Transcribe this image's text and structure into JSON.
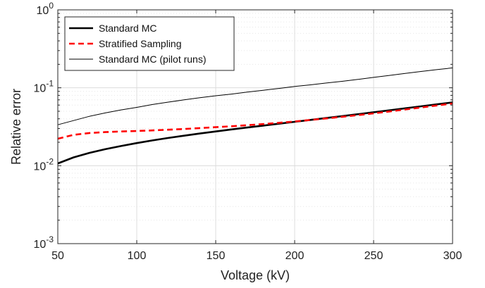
{
  "chart_data": {
    "type": "line",
    "title": "",
    "xlabel": "Voltage (kV)",
    "ylabel": "Relative error",
    "x_scale": "linear",
    "y_scale": "log",
    "xlim": [
      50,
      300
    ],
    "ylim": [
      0.001,
      1
    ],
    "x_ticks": [
      50,
      100,
      150,
      200,
      250,
      300
    ],
    "x_tick_labels": [
      "50",
      "100",
      "150",
      "200",
      "250",
      "300"
    ],
    "y_ticks": [
      0.001,
      0.01,
      0.1,
      1
    ],
    "y_tick_labels": [
      {
        "base": "10",
        "exp": "-3"
      },
      {
        "base": "10",
        "exp": "-2"
      },
      {
        "base": "10",
        "exp": "-1"
      },
      {
        "base": "10",
        "exp": "0"
      }
    ],
    "grid": true,
    "minor_grid": true,
    "legend_position": "top-left",
    "x": [
      50,
      60,
      70,
      80,
      90,
      100,
      110,
      120,
      130,
      140,
      150,
      160,
      170,
      180,
      190,
      200,
      210,
      220,
      230,
      240,
      250,
      260,
      270,
      280,
      290,
      300
    ],
    "series": [
      {
        "name": "Standard MC",
        "color": "#000000",
        "style": "solid",
        "width": "thick",
        "values": [
          0.0107,
          0.0128,
          0.0146,
          0.0163,
          0.0179,
          0.0195,
          0.0211,
          0.0227,
          0.0243,
          0.0259,
          0.0275,
          0.0292,
          0.0309,
          0.0327,
          0.0346,
          0.0366,
          0.0387,
          0.0409,
          0.0433,
          0.0458,
          0.0485,
          0.0514,
          0.0545,
          0.0578,
          0.0613,
          0.065
        ]
      },
      {
        "name": "Stratified Sampling",
        "color": "#ff0000",
        "style": "dashed",
        "width": "thick",
        "values": [
          0.0222,
          0.0249,
          0.0263,
          0.027,
          0.0275,
          0.0279,
          0.0284,
          0.029,
          0.0296,
          0.0304,
          0.0312,
          0.0321,
          0.0331,
          0.0342,
          0.0355,
          0.037,
          0.0386,
          0.0404,
          0.0424,
          0.0446,
          0.047,
          0.0497,
          0.0526,
          0.0558,
          0.0593,
          0.063
        ]
      },
      {
        "name": "Standard MC (pilot runs)",
        "color": "#000000",
        "style": "solid",
        "width": "thin",
        "values": [
          0.0335,
          0.038,
          0.043,
          0.0475,
          0.052,
          0.056,
          0.061,
          0.0655,
          0.07,
          0.0745,
          0.079,
          0.083,
          0.088,
          0.093,
          0.098,
          0.104,
          0.109,
          0.115,
          0.121,
          0.128,
          0.136,
          0.144,
          0.153,
          0.162,
          0.171,
          0.18
        ]
      }
    ]
  }
}
